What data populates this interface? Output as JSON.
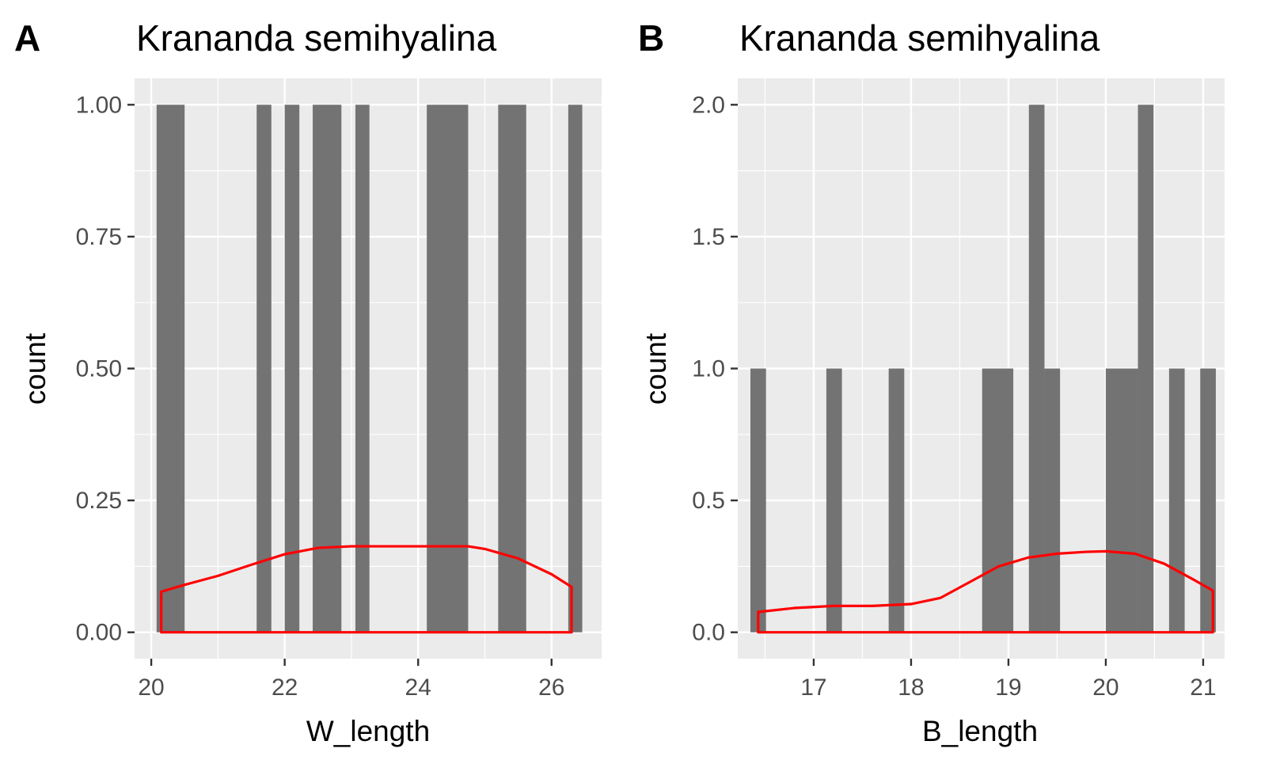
{
  "chart_data": [
    {
      "type": "bar",
      "panel": "A",
      "title": "Krananda semihyalina",
      "xlabel": "W_length",
      "ylabel": "count",
      "xlim": [
        19.75,
        26.75
      ],
      "ylim": [
        -0.05,
        1.05
      ],
      "x_ticks": [
        20,
        22,
        24,
        26
      ],
      "x_tick_labels": [
        "20",
        "22",
        "24",
        "26"
      ],
      "y_ticks": [
        0,
        0.25,
        0.5,
        0.75,
        1.0
      ],
      "y_tick_labels": [
        "0.00",
        "0.25",
        "0.50",
        "0.75",
        "1.00"
      ],
      "grid": true,
      "bars": [
        {
          "x0": 20.08,
          "x1": 20.5,
          "count": 1
        },
        {
          "x0": 21.58,
          "x1": 21.8,
          "count": 1
        },
        {
          "x0": 22.0,
          "x1": 22.22,
          "count": 1
        },
        {
          "x0": 22.42,
          "x1": 22.85,
          "count": 1
        },
        {
          "x0": 23.06,
          "x1": 23.27,
          "count": 1
        },
        {
          "x0": 24.13,
          "x1": 24.75,
          "count": 1
        },
        {
          "x0": 25.2,
          "x1": 25.62,
          "count": 1
        },
        {
          "x0": 26.25,
          "x1": 26.46,
          "count": 1
        }
      ],
      "density_outline": {
        "color": "#ff0000",
        "x": [
          20.15,
          20.5,
          21.0,
          21.5,
          22.0,
          22.5,
          23.0,
          23.5,
          24.0,
          24.5,
          24.75,
          25.0,
          25.5,
          26.0,
          26.3
        ],
        "y": [
          0.077,
          0.09,
          0.107,
          0.128,
          0.148,
          0.16,
          0.163,
          0.163,
          0.163,
          0.163,
          0.163,
          0.158,
          0.14,
          0.11,
          0.086
        ]
      },
      "bar_color": "#737373",
      "panel_background": "#ebebeb"
    },
    {
      "type": "bar",
      "panel": "B",
      "title": "Krananda semihyalina",
      "xlabel": "B_length",
      "ylabel": "count",
      "xlim": [
        16.22,
        21.22
      ],
      "ylim": [
        -0.1,
        2.1
      ],
      "x_ticks": [
        17,
        18,
        19,
        20,
        21
      ],
      "x_tick_labels": [
        "17",
        "18",
        "19",
        "20",
        "21"
      ],
      "y_ticks": [
        0,
        0.5,
        1.0,
        1.5,
        2.0
      ],
      "y_tick_labels": [
        "0.0",
        "0.5",
        "1.0",
        "1.5",
        "2.0"
      ],
      "grid": true,
      "bars": [
        {
          "x0": 16.35,
          "x1": 16.51,
          "count": 1
        },
        {
          "x0": 17.13,
          "x1": 17.29,
          "count": 1
        },
        {
          "x0": 17.77,
          "x1": 17.93,
          "count": 1
        },
        {
          "x0": 18.73,
          "x1": 19.05,
          "count": 1
        },
        {
          "x0": 19.21,
          "x1": 19.37,
          "count": 2
        },
        {
          "x0": 19.37,
          "x1": 19.53,
          "count": 1
        },
        {
          "x0": 20.0,
          "x1": 20.33,
          "count": 1
        },
        {
          "x0": 20.33,
          "x1": 20.49,
          "count": 2
        },
        {
          "x0": 20.65,
          "x1": 20.81,
          "count": 1
        },
        {
          "x0": 20.97,
          "x1": 21.13,
          "count": 1
        }
      ],
      "density_outline": {
        "color": "#ff0000",
        "x": [
          16.43,
          16.8,
          17.2,
          17.6,
          18.0,
          18.3,
          18.6,
          18.9,
          19.2,
          19.5,
          19.8,
          20.0,
          20.3,
          20.6,
          20.9,
          21.1
        ],
        "y": [
          0.077,
          0.092,
          0.1,
          0.1,
          0.107,
          0.13,
          0.19,
          0.25,
          0.283,
          0.298,
          0.305,
          0.307,
          0.298,
          0.26,
          0.2,
          0.158
        ]
      },
      "bar_color": "#737373",
      "panel_background": "#ebebeb"
    }
  ]
}
